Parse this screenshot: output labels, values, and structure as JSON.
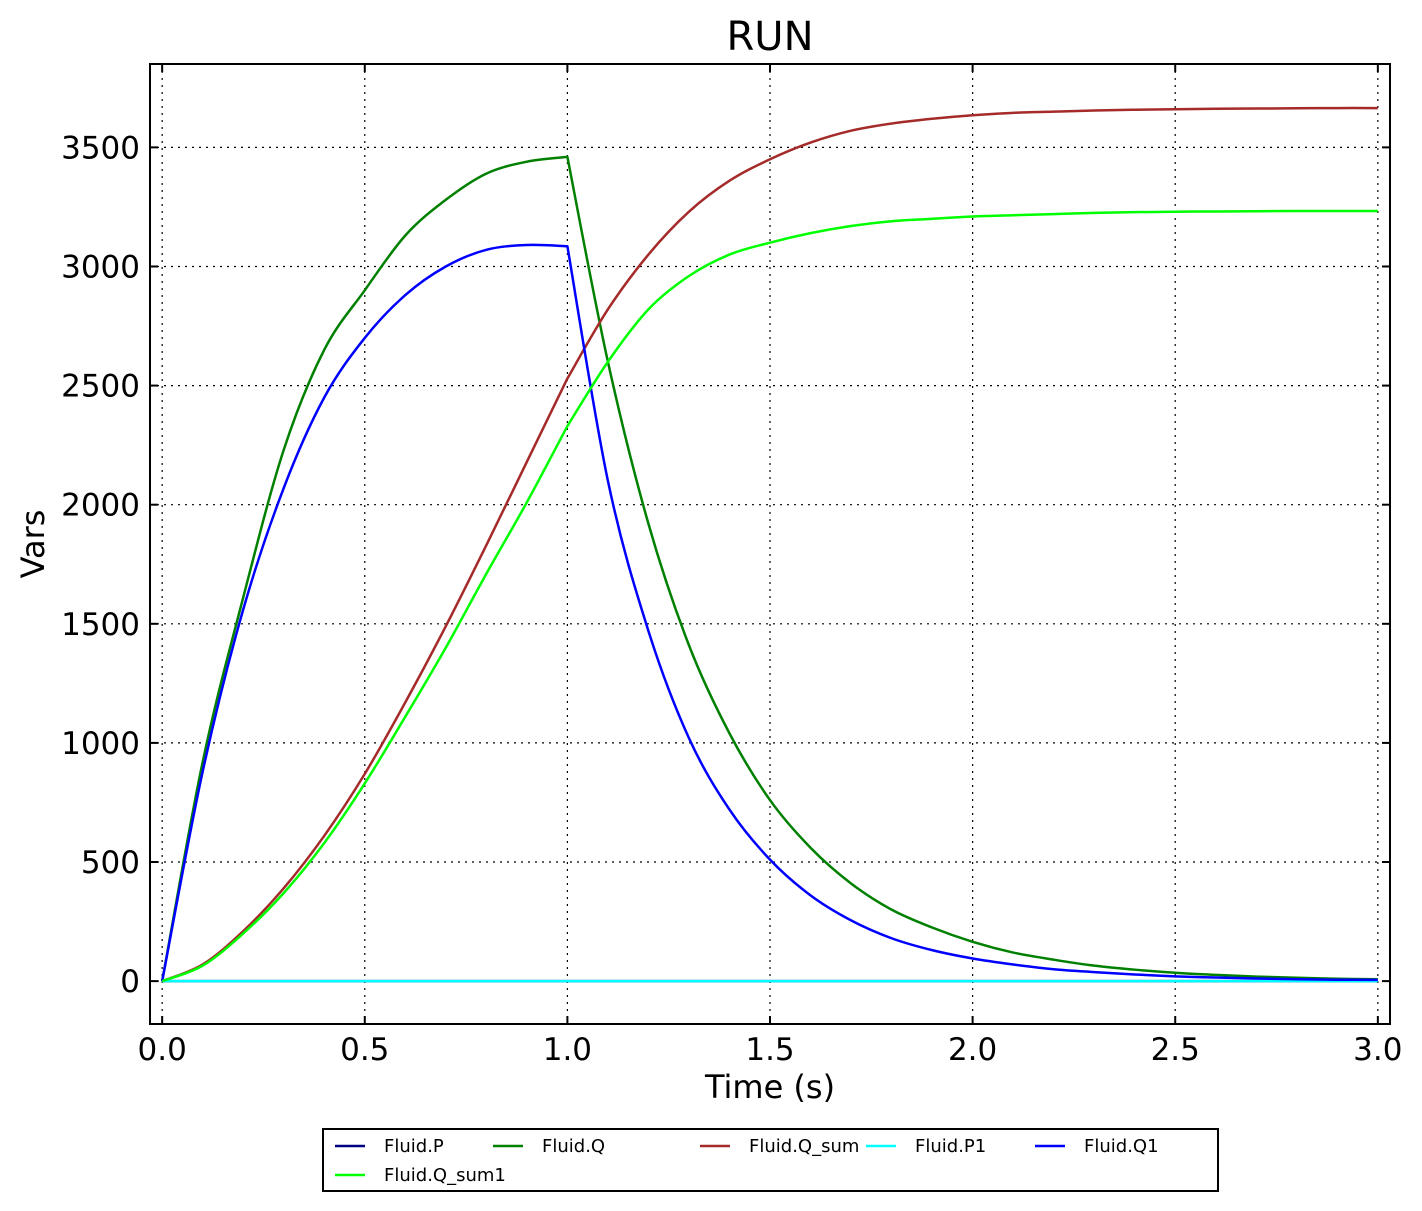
{
  "chart_data": {
    "type": "line",
    "title": "RUN",
    "xlabel": "Time (s)",
    "ylabel": "Vars",
    "xlim": [
      -0.03,
      3.03
    ],
    "ylim": [
      -180,
      3850
    ],
    "xticks": [
      0.0,
      0.5,
      1.0,
      1.5,
      2.0,
      2.5,
      3.0
    ],
    "xtick_labels": [
      "0.0",
      "0.5",
      "1.0",
      "1.5",
      "2.0",
      "2.5",
      "3.0"
    ],
    "yticks": [
      0,
      500,
      1000,
      1500,
      2000,
      2500,
      3000,
      3500
    ],
    "ytick_labels": [
      "0",
      "500",
      "1000",
      "1500",
      "2000",
      "2500",
      "3000",
      "3500"
    ],
    "grid": true,
    "legend_placement": "bottom-center",
    "legend_columns": 5,
    "series": [
      {
        "name": "Fluid.P",
        "color": "#000080",
        "x": [
          0,
          3
        ],
        "y": [
          0,
          0
        ]
      },
      {
        "name": "Fluid.Q",
        "color": "#008000",
        "x": [
          0,
          0.1,
          0.2,
          0.3,
          0.4,
          0.5,
          0.6,
          0.7,
          0.8,
          0.9,
          1.0,
          1.1,
          1.2,
          1.3,
          1.4,
          1.5,
          1.6,
          1.7,
          1.8,
          1.9,
          2.0,
          2.1,
          2.2,
          2.3,
          2.4,
          2.5,
          2.6,
          2.7,
          2.8,
          2.9,
          3.0
        ],
        "y": [
          0,
          920,
          1610,
          2230,
          2650,
          2900,
          3130,
          3280,
          3390,
          3440,
          3460,
          2600,
          1920,
          1410,
          1040,
          760,
          560,
          410,
          300,
          225,
          165,
          120,
          90,
          65,
          48,
          35,
          26,
          19,
          14,
          10,
          8
        ]
      },
      {
        "name": "Fluid.Q_sum",
        "color": "#a52a2a",
        "x": [
          0,
          0.1,
          0.2,
          0.3,
          0.4,
          0.5,
          0.6,
          0.7,
          0.8,
          0.9,
          1.0,
          1.1,
          1.2,
          1.3,
          1.4,
          1.5,
          1.6,
          1.7,
          1.8,
          1.9,
          2.0,
          2.1,
          2.2,
          2.3,
          2.4,
          2.5,
          2.6,
          2.7,
          2.8,
          2.9,
          3.0
        ],
        "y": [
          0,
          70,
          210,
          390,
          610,
          870,
          1170,
          1490,
          1830,
          2180,
          2530,
          2820,
          3050,
          3230,
          3360,
          3450,
          3520,
          3570,
          3600,
          3620,
          3635,
          3645,
          3650,
          3655,
          3658,
          3660,
          3662,
          3663,
          3664,
          3665,
          3665
        ]
      },
      {
        "name": "Fluid.P1",
        "color": "#00ffff",
        "x": [
          0,
          3
        ],
        "y": [
          0,
          0
        ]
      },
      {
        "name": "Fluid.Q1",
        "color": "#0000ff",
        "x": [
          0,
          0.1,
          0.2,
          0.3,
          0.4,
          0.5,
          0.6,
          0.7,
          0.8,
          0.9,
          1.0,
          1.1,
          1.2,
          1.3,
          1.4,
          1.5,
          1.6,
          1.7,
          1.8,
          1.9,
          2.0,
          2.1,
          2.2,
          2.3,
          2.4,
          2.5,
          2.6,
          2.7,
          2.8,
          2.9,
          3.0
        ],
        "y": [
          0,
          880,
          1560,
          2070,
          2450,
          2700,
          2880,
          3000,
          3070,
          3090,
          3085,
          2100,
          1470,
          1020,
          720,
          510,
          360,
          255,
          180,
          130,
          95,
          70,
          50,
          38,
          28,
          20,
          15,
          11,
          8,
          6,
          5
        ]
      },
      {
        "name": "Fluid.Q_sum1",
        "color": "#00ff00",
        "x": [
          0,
          0.1,
          0.2,
          0.3,
          0.4,
          0.5,
          0.6,
          0.7,
          0.8,
          0.9,
          1.0,
          1.1,
          1.2,
          1.3,
          1.4,
          1.5,
          1.6,
          1.7,
          1.8,
          1.9,
          2.0,
          2.1,
          2.2,
          2.3,
          2.4,
          2.5,
          2.6,
          2.7,
          2.8,
          2.9,
          3.0
        ],
        "y": [
          0,
          65,
          200,
          370,
          580,
          830,
          1110,
          1400,
          1710,
          2010,
          2330,
          2600,
          2820,
          2960,
          3050,
          3100,
          3140,
          3170,
          3190,
          3200,
          3210,
          3215,
          3220,
          3225,
          3228,
          3230,
          3231,
          3232,
          3233,
          3233,
          3233
        ]
      }
    ]
  }
}
